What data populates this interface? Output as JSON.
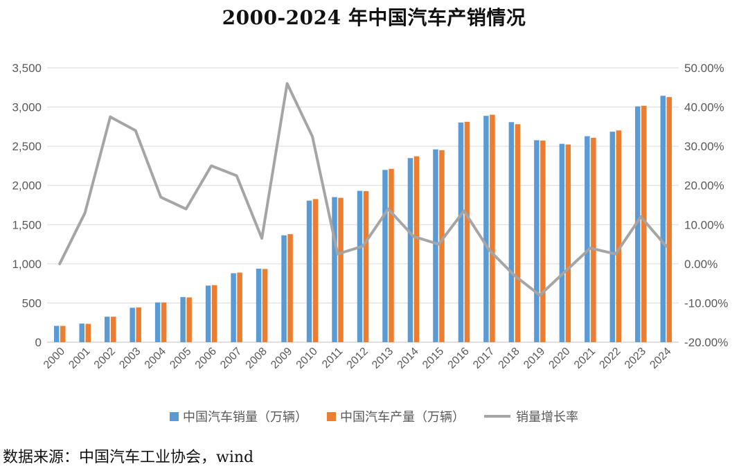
{
  "title": "2000-2024 年中国汽车产销情况",
  "source": "数据来源：中国汽车工业协会，wind",
  "colors": {
    "sales": "#5B9BD5",
    "production": "#ED7D31",
    "growth": "#A5A5A5",
    "grid": "#D9D9D9",
    "axis_text": "#595959"
  },
  "chart_data": {
    "type": "bar",
    "title": "2000-2024 年中国汽车产销情况",
    "categories": [
      "2000",
      "2001",
      "2002",
      "2003",
      "2004",
      "2005",
      "2006",
      "2007",
      "2008",
      "2009",
      "2010",
      "2011",
      "2012",
      "2013",
      "2014",
      "2015",
      "2016",
      "2017",
      "2018",
      "2019",
      "2020",
      "2021",
      "2022",
      "2023",
      "2024"
    ],
    "series": [
      {
        "name": "中国汽车销量（万辆）",
        "type": "bar",
        "axis": "left",
        "values": [
          208,
          237,
          325,
          439,
          507,
          576,
          722,
          880,
          938,
          1364,
          1806,
          1851,
          1931,
          2198,
          2349,
          2460,
          2803,
          2888,
          2808,
          2577,
          2531,
          2628,
          2686,
          3009,
          3144
        ]
      },
      {
        "name": "中国汽车产量（万辆）",
        "type": "bar",
        "axis": "left",
        "values": [
          207,
          234,
          325,
          444,
          507,
          571,
          728,
          888,
          934,
          1379,
          1826,
          1842,
          1927,
          2212,
          2372,
          2450,
          2812,
          2902,
          2781,
          2572,
          2522,
          2608,
          2702,
          3016,
          3128
        ]
      },
      {
        "name": "销量增长率",
        "type": "line",
        "axis": "right",
        "values": [
          0.0,
          13.0,
          37.5,
          34.0,
          17.0,
          14.0,
          25.0,
          22.5,
          6.5,
          46.0,
          32.5,
          2.5,
          4.5,
          14.0,
          7.0,
          5.0,
          13.5,
          3.5,
          -3.0,
          -8.0,
          -2.0,
          4.0,
          2.5,
          12.0,
          4.5
        ]
      }
    ],
    "y_left": {
      "ylim": [
        0,
        3500
      ],
      "ticks": [
        "0",
        "500",
        "1,000",
        "1,500",
        "2,000",
        "2,500",
        "3,000",
        "3,500"
      ]
    },
    "y_right": {
      "ylim": [
        -20,
        50
      ],
      "ticks": [
        "-20.00%",
        "-10.00%",
        "0.00%",
        "10.00%",
        "20.00%",
        "30.00%",
        "40.00%",
        "50.00%"
      ]
    },
    "grid": true,
    "legend_position": "bottom"
  }
}
